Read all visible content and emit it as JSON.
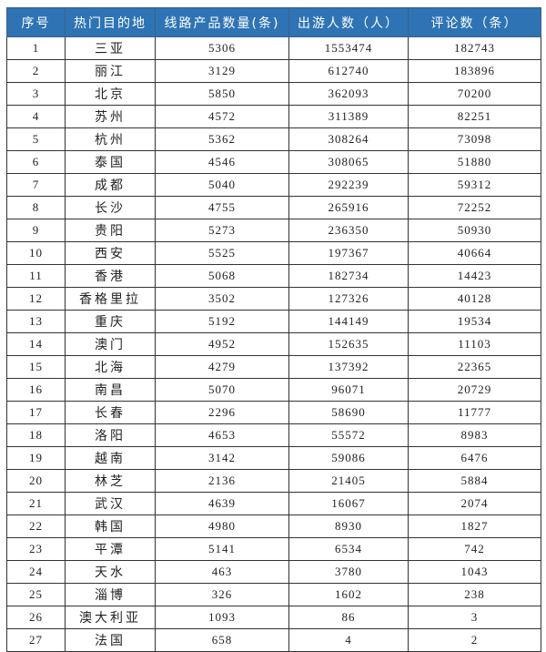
{
  "table": {
    "header_color": "#2e74b5",
    "headers": [
      "序号",
      "热门目的地",
      "线路产品数量(条)",
      "出游人数（人）",
      "评论数（条）"
    ],
    "rows": [
      [
        "1",
        "三亚",
        "5306",
        "1553474",
        "182743"
      ],
      [
        "2",
        "丽江",
        "3129",
        "612740",
        "183896"
      ],
      [
        "3",
        "北京",
        "5850",
        "362093",
        "70200"
      ],
      [
        "4",
        "苏州",
        "4572",
        "311389",
        "82251"
      ],
      [
        "5",
        "杭州",
        "5362",
        "308264",
        "73098"
      ],
      [
        "6",
        "泰国",
        "4546",
        "308065",
        "51880"
      ],
      [
        "7",
        "成都",
        "5040",
        "292239",
        "59312"
      ],
      [
        "8",
        "长沙",
        "4755",
        "265916",
        "72252"
      ],
      [
        "9",
        "贵阳",
        "5273",
        "236350",
        "50930"
      ],
      [
        "10",
        "西安",
        "5525",
        "197367",
        "40664"
      ],
      [
        "11",
        "香港",
        "5068",
        "182734",
        "14423"
      ],
      [
        "12",
        "香格里拉",
        "3502",
        "127326",
        "40128"
      ],
      [
        "13",
        "重庆",
        "5192",
        "144149",
        "19534"
      ],
      [
        "14",
        "澳门",
        "4952",
        "152635",
        "11103"
      ],
      [
        "15",
        "北海",
        "4279",
        "137392",
        "22365"
      ],
      [
        "16",
        "南昌",
        "5070",
        "96071",
        "20729"
      ],
      [
        "17",
        "长春",
        "2296",
        "58690",
        "11777"
      ],
      [
        "18",
        "洛阳",
        "4653",
        "55572",
        "8983"
      ],
      [
        "19",
        "越南",
        "3142",
        "59086",
        "6476"
      ],
      [
        "20",
        "林芝",
        "2136",
        "21405",
        "5884"
      ],
      [
        "21",
        "武汉",
        "4639",
        "16067",
        "2074"
      ],
      [
        "22",
        "韩国",
        "4980",
        "8930",
        "1827"
      ],
      [
        "23",
        "平潭",
        "5141",
        "6534",
        "742"
      ],
      [
        "24",
        "天水",
        "463",
        "3780",
        "1043"
      ],
      [
        "25",
        "淄博",
        "326",
        "1602",
        "238"
      ],
      [
        "26",
        "澳大利亚",
        "1093",
        "86",
        "3"
      ],
      [
        "27",
        "法国",
        "658",
        "4",
        "2"
      ]
    ]
  }
}
